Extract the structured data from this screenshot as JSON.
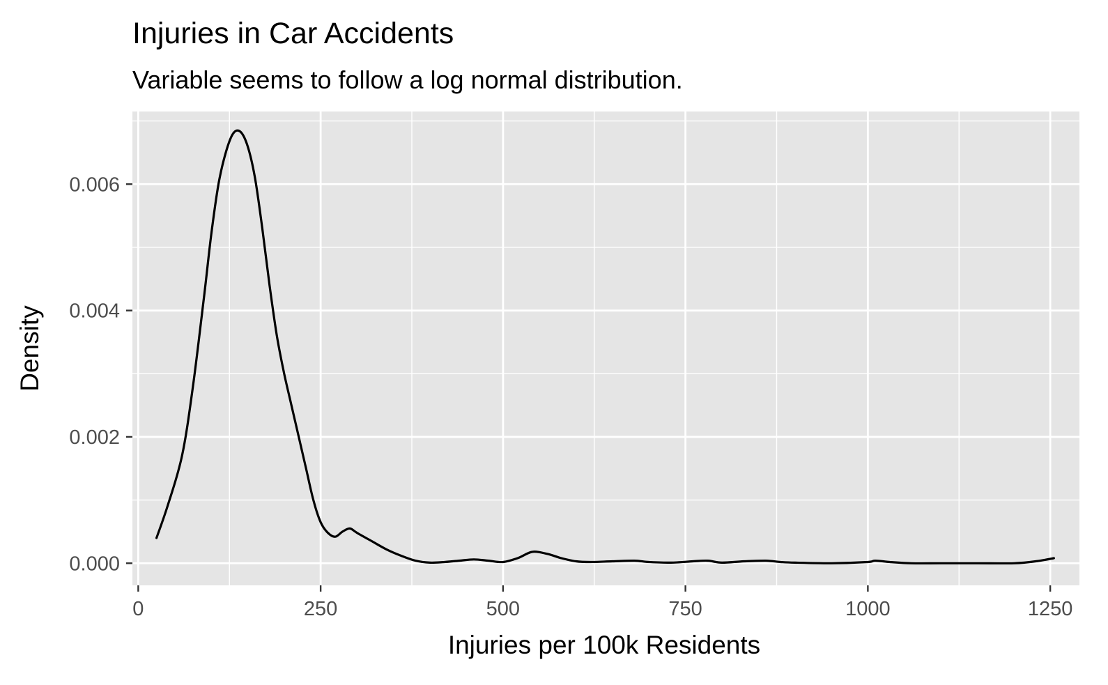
{
  "chart_data": {
    "type": "line",
    "title": "Injuries in Car Accidents",
    "subtitle": "Variable seems to follow a log normal distribution.",
    "xlabel": "Injuries per 100k Residents",
    "ylabel": "Density",
    "xlim": [
      -8,
      1290
    ],
    "ylim": [
      -0.00035,
      0.00715
    ],
    "x_ticks": [
      0,
      250,
      500,
      750,
      1000,
      1250
    ],
    "x_tick_labels": [
      "0",
      "250",
      "500",
      "750",
      "1000",
      "1250"
    ],
    "y_ticks": [
      0,
      0.002,
      0.004,
      0.006
    ],
    "y_tick_labels": [
      "0.000",
      "0.002",
      "0.004",
      "0.006"
    ],
    "grid": true,
    "background": "#e5e5e5",
    "grid_color": "#ffffff",
    "line_color": "#000000",
    "series": [
      {
        "x": [
          25,
          40,
          60,
          75,
          90,
          100,
          110,
          120,
          130,
          140,
          150,
          160,
          170,
          180,
          190,
          200,
          210,
          220,
          230,
          240,
          250,
          260,
          270,
          280,
          290,
          300,
          320,
          340,
          360,
          380,
          400,
          420,
          440,
          460,
          480,
          500,
          520,
          540,
          560,
          580,
          600,
          620,
          650,
          680,
          700,
          730,
          760,
          780,
          800,
          830,
          860,
          880,
          900,
          950,
          1000,
          1010,
          1030,
          1060,
          1100,
          1150,
          1200,
          1230,
          1255
        ],
        "y": [
          0.0004,
          0.0009,
          0.0017,
          0.0028,
          0.0042,
          0.0052,
          0.006,
          0.0065,
          0.0068,
          0.00683,
          0.0066,
          0.0061,
          0.0053,
          0.0044,
          0.0036,
          0.003,
          0.0025,
          0.002,
          0.0015,
          0.001,
          0.00065,
          0.00048,
          0.00042,
          0.0005,
          0.00055,
          0.00048,
          0.00035,
          0.00022,
          0.00012,
          4e-05,
          1e-05,
          2e-05,
          4e-05,
          6e-05,
          4e-05,
          2e-05,
          8e-05,
          0.00018,
          0.00015,
          8e-05,
          3e-05,
          2e-05,
          3e-05,
          4e-05,
          2e-05,
          1e-05,
          3e-05,
          4e-05,
          1e-05,
          3e-05,
          4e-05,
          2e-05,
          1e-05,
          0.0,
          2e-05,
          4e-05,
          2e-05,
          0.0,
          0.0,
          0.0,
          0.0,
          3e-05,
          8e-05
        ]
      }
    ]
  }
}
